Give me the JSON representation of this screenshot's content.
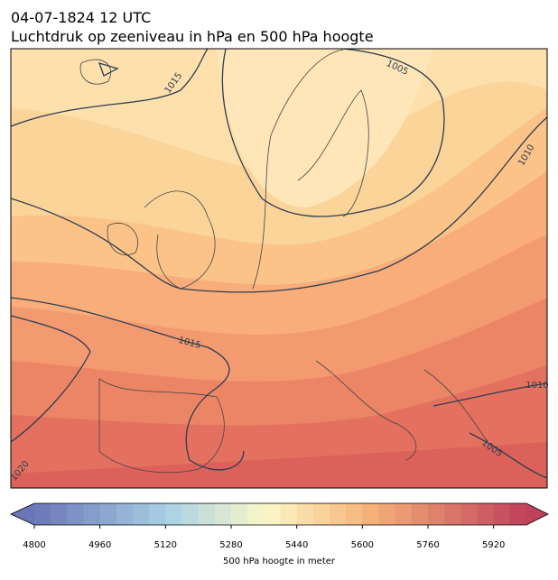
{
  "title": {
    "line1": "04-07-1824 12 UTC",
    "line2": "Luchtdruk op zeeniveau in hPa en 500 hPa hoogte"
  },
  "contour_labels": [
    "1015",
    "1005",
    "1010",
    "1015",
    "1010",
    "1005",
    "1020"
  ],
  "colorbar": {
    "label": "500 hPa hoogte in meter",
    "lim": [
      4800,
      6000
    ],
    "step": 40,
    "ticks": [
      4800,
      4960,
      5120,
      5280,
      5440,
      5600,
      5760,
      5920
    ]
  }
}
